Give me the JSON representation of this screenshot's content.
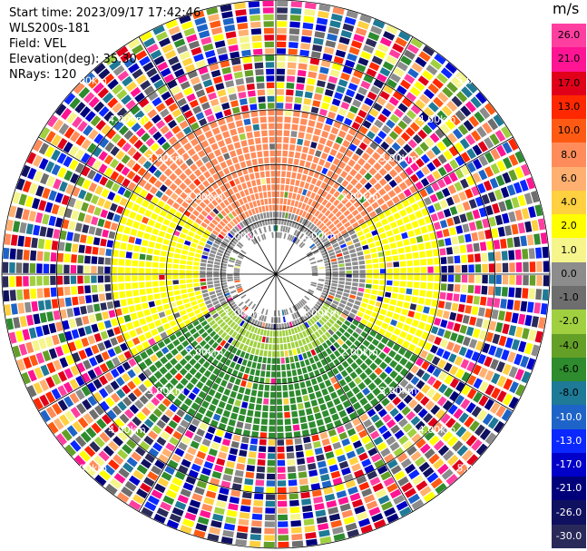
{
  "header": {
    "start_time": "Start time: 2023/09/17 17:42:46",
    "instrument": "WLS200s-181",
    "field": "Field: VEL",
    "elevation": "Elevation(deg): 35.30",
    "nrays": "NRays: 120"
  },
  "colorbar": {
    "unit": "m/s",
    "labels": [
      "26.0",
      "21.0",
      "17.0",
      "13.0",
      "10.0",
      "8.0",
      "6.0",
      "4.0",
      "2.0",
      "1.0",
      "0.0",
      "-1.0",
      "-2.0",
      "-4.0",
      "-6.0",
      "-8.0",
      "-10.0",
      "-13.0",
      "-17.0",
      "-21.0",
      "-26.0",
      "-30.0"
    ],
    "colors": [
      "#ff3fa0",
      "#ff1493",
      "#e0001a",
      "#ff2800",
      "#ff5a14",
      "#ff8c5a",
      "#ffb070",
      "#ffd040",
      "#ffff00",
      "#f5f58c",
      "#8c8c8c",
      "#6e6e6e",
      "#a0d040",
      "#64a028",
      "#2e8b2e",
      "#1e7a96",
      "#1e64c8",
      "#0a28ff",
      "#0000c8",
      "#00007a",
      "#101060",
      "#2a2a5a"
    ]
  },
  "range_rings": {
    "labels": [
      "1.00km",
      "2.00km",
      "3.00km",
      "4.00km",
      "5.00km"
    ]
  }
}
